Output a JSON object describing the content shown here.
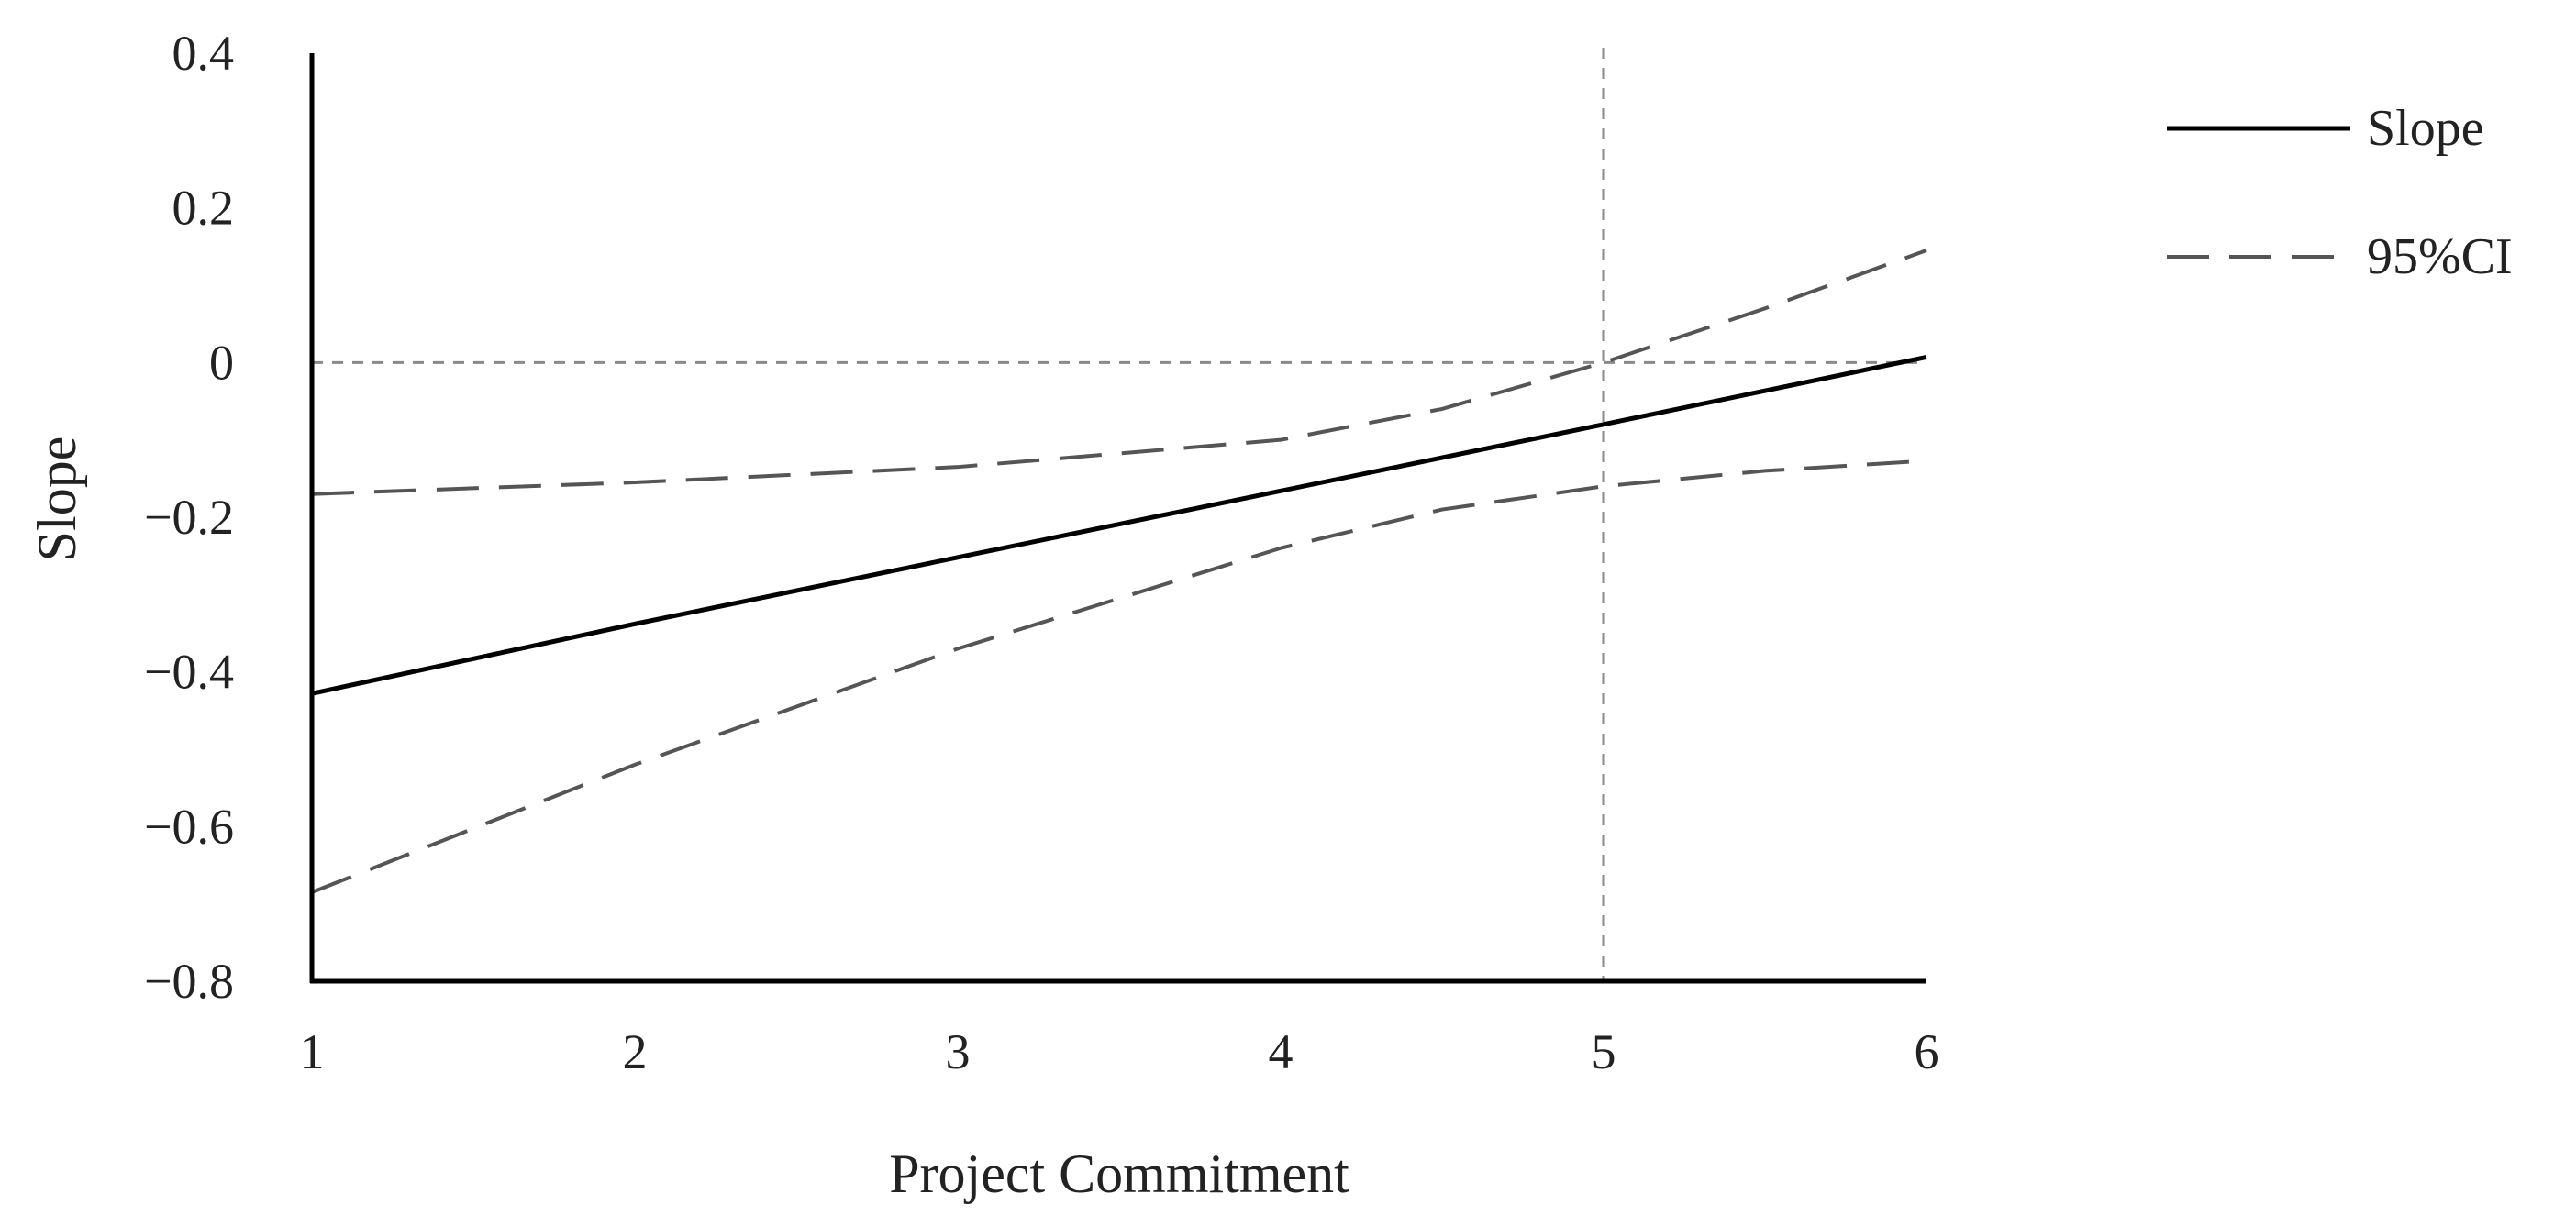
{
  "chart_data": {
    "type": "line",
    "xlabel": "Project Commitment",
    "ylabel": "Slope",
    "xlim": [
      1,
      6
    ],
    "ylim": [
      -0.8,
      0.4
    ],
    "x_ticks": [
      "1",
      "2",
      "3",
      "4",
      "5",
      "6"
    ],
    "y_ticks": [
      "0.4",
      "0.2",
      "0",
      "−0.2",
      "−0.4",
      "−0.6",
      "−0.8"
    ],
    "x_tick_values": [
      1,
      2,
      3,
      4,
      5,
      6
    ],
    "y_tick_values": [
      0.4,
      0.2,
      0,
      -0.2,
      -0.4,
      -0.6,
      -0.8
    ],
    "reference_lines": {
      "horizontal_y": 0,
      "vertical_x": 5
    },
    "grid": false,
    "legend_position": "top-right",
    "series": [
      {
        "name": "Slope",
        "style": "solid",
        "color": "#000000",
        "x": [
          1,
          2,
          3,
          4,
          5,
          6
        ],
        "y": [
          -0.428,
          -0.338,
          -0.252,
          -0.166,
          -0.08,
          0.007
        ]
      },
      {
        "name": "95%CI",
        "style": "dashed",
        "color": "#555555",
        "x": [
          1,
          2,
          3,
          4,
          4.5,
          5,
          5.5,
          6
        ],
        "y": [
          -0.17,
          -0.155,
          -0.135,
          -0.1,
          -0.06,
          0.0,
          0.07,
          0.145
        ]
      },
      {
        "name": "",
        "style": "dashed",
        "color": "#555555",
        "x": [
          1,
          2,
          3,
          4,
          4.5,
          5,
          5.5,
          6
        ],
        "y": [
          -0.685,
          -0.52,
          -0.37,
          -0.24,
          -0.19,
          -0.16,
          -0.14,
          -0.127
        ]
      }
    ]
  }
}
